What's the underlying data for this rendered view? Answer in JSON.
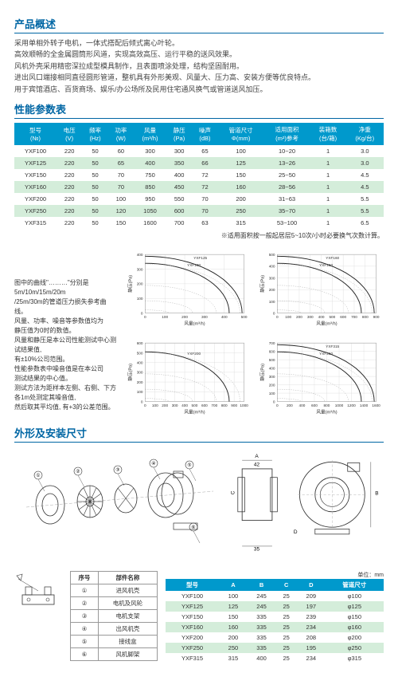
{
  "overview": {
    "title": "产品概述",
    "lines": [
      "采用单相外转子电机，一体式搭配后倾式离心叶轮。",
      "高效顺畅的全金属圆筒形风道，实现高效高压、运行平稳的送风效果。",
      "风机外壳采用精密深拉成型模具制作，且表面喷涂处理，结构坚固耐用。",
      "进出风口端接相同直径圆形管道，整机具有外形美观、风量大、压力高、安装方便等优良特点。",
      "用于宾馆酒店、百货商场、娱乐/办公场所及民用住宅通风换气或管道送风加压。"
    ]
  },
  "perf": {
    "title": "性能参数表",
    "headers": [
      "型号\n(№)",
      "电压\n(V)",
      "频率\n(Hz)",
      "功率\n(W)",
      "风量\n(m³/h)",
      "静压\n(Pa)",
      "噪声\n(dB)",
      "管道尺寸\nΦ(mm)",
      "适用面积\n(m²)参考",
      "装箱数\n(台/箱)",
      "净重\n(Kg/台)"
    ],
    "rows": [
      [
        "YXF100",
        "220",
        "50",
        "60",
        "300",
        "300",
        "65",
        "100",
        "10~20",
        "1",
        "3.0"
      ],
      [
        "YXF125",
        "220",
        "50",
        "65",
        "400",
        "350",
        "66",
        "125",
        "13~26",
        "1",
        "3.0"
      ],
      [
        "YXF150",
        "220",
        "50",
        "70",
        "750",
        "400",
        "72",
        "150",
        "25~50",
        "1",
        "4.5"
      ],
      [
        "YXF160",
        "220",
        "50",
        "70",
        "850",
        "450",
        "72",
        "160",
        "28~56",
        "1",
        "4.5"
      ],
      [
        "YXF200",
        "220",
        "50",
        "100",
        "950",
        "550",
        "70",
        "200",
        "31~63",
        "1",
        "5.5"
      ],
      [
        "YXF250",
        "220",
        "50",
        "120",
        "1050",
        "600",
        "70",
        "250",
        "35~70",
        "1",
        "5.5"
      ],
      [
        "YXF315",
        "220",
        "50",
        "150",
        "1600",
        "700",
        "63",
        "315",
        "53~100",
        "1",
        "6.5"
      ]
    ],
    "note": "※适用面积按一般起居层5~10次/小时必要换气次数计算。"
  },
  "chartText": {
    "lines": [
      "图中的曲线\"………\"分别是5m/10m/15m/20m",
      "/25m/30m的管道压力损失参考曲线。",
      "风量、功率、噪音等参数值均为",
      "静压值为0时的数值。",
      "风量和静压是本公司性能测试中心测试结果值,",
      "有±10%公司范围。",
      "性能参数表中噪音值是在本公司",
      "测试结果的中心值。",
      "测试方法为距样本左侧、右侧、下方",
      "各1m处测定其噪音值,",
      "然后取其平均值, 有+3的公差范围。"
    ]
  },
  "charts": [
    {
      "models": [
        "YXF100",
        "YXF125"
      ],
      "xmax": 500,
      "ymax": 400,
      "xstep": 100,
      "ystep": 100,
      "xlabel": "风量(m³/h)",
      "ylabel": "静压(Pa)"
    },
    {
      "models": [
        "YXF150",
        "YXF160"
      ],
      "xmax": 900,
      "ymax": 500,
      "xstep": 100,
      "ystep": 100,
      "xlabel": "风量(m³/h)",
      "ylabel": "静压(Pa)"
    },
    {
      "models": [
        "YXF200"
      ],
      "xmax": 1000,
      "ymax": 600,
      "xstep": 100,
      "ystep": 100,
      "xlabel": "风量(m³/h)",
      "ylabel": "静压(Pa)"
    },
    {
      "models": [
        "YXF250",
        "YXF315"
      ],
      "xmax": 1600,
      "ymax": 700,
      "xstep": 200,
      "ystep": 100,
      "xlabel": "风量(m³/h)",
      "ylabel": "静压(Pa)"
    }
  ],
  "install": {
    "title": "外形及安装尺寸",
    "callouts": [
      "①",
      "②",
      "③",
      "④",
      "⑤",
      "⑥"
    ],
    "parts": {
      "headers": [
        "序号",
        "部件名称"
      ],
      "rows": [
        [
          "①",
          "进风机壳"
        ],
        [
          "②",
          "电机及风轮"
        ],
        [
          "③",
          "电机支架"
        ],
        [
          "④",
          "出风机壳"
        ],
        [
          "⑤",
          "接线盒"
        ],
        [
          "⑥",
          "风机脚架"
        ]
      ]
    },
    "dimensions": {
      "unit": "单位：mm",
      "headers": [
        "型号",
        "A",
        "B",
        "C",
        "D",
        "管道尺寸"
      ],
      "rows": [
        [
          "YXF100",
          "100",
          "245",
          "25",
          "209",
          "φ100"
        ],
        [
          "YXF125",
          "125",
          "245",
          "25",
          "197",
          "φ125"
        ],
        [
          "YXF150",
          "150",
          "335",
          "25",
          "239",
          "φ150"
        ],
        [
          "YXF160",
          "160",
          "335",
          "25",
          "234",
          "φ160"
        ],
        [
          "YXF200",
          "200",
          "335",
          "25",
          "208",
          "φ200"
        ],
        [
          "YXF250",
          "250",
          "335",
          "25",
          "195",
          "φ250"
        ],
        [
          "YXF315",
          "315",
          "400",
          "25",
          "234",
          "φ315"
        ]
      ]
    }
  },
  "colors": {
    "accent": "#0066a4",
    "tableHeader": "#0099cc",
    "evenRow": "#d4edda",
    "grid": "#888",
    "curve": "#222"
  }
}
